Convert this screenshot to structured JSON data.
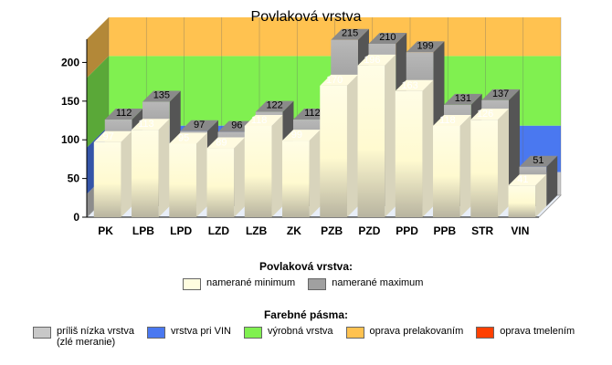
{
  "chart_data": {
    "type": "bar",
    "title": "Povlaková vrstva",
    "categories": [
      "PK",
      "LPB",
      "LPD",
      "LZD",
      "LZB",
      "ZK",
      "PZB",
      "PZD",
      "PPD",
      "PPB",
      "STR",
      "VIN"
    ],
    "series": [
      {
        "name": "namerané minimum",
        "values": [
          97,
          113,
          95,
          89,
          118,
          99,
          170,
          196,
          163,
          118,
          126,
          41
        ],
        "color": "#fffde0"
      },
      {
        "name": "namerané maximum",
        "values": [
          112,
          135,
          97,
          96,
          122,
          112,
          215,
          210,
          199,
          131,
          137,
          51
        ],
        "color": "#a0a0a0"
      }
    ],
    "ylim": [
      0,
      230
    ],
    "yticks": [
      0,
      50,
      100,
      150,
      200
    ],
    "bands": [
      {
        "name": "príliš nízka vrstva\n(zlé meranie)",
        "from": 0,
        "to": 30,
        "color": "#c8c8c8"
      },
      {
        "name": "vrstva pri VIN",
        "from": 30,
        "to": 90,
        "color": "#4a78f0"
      },
      {
        "name": "výrobná vrstva",
        "from": 90,
        "to": 180,
        "color": "#80f050"
      },
      {
        "name": "oprava prelakovaním",
        "from": 180,
        "to": 230,
        "color": "#ffc250"
      },
      {
        "name": "oprava tmelením",
        "from": 230,
        "to": 230,
        "color": "#ff4000"
      }
    ],
    "grid": false
  },
  "legend": {
    "series_title": "Povlaková vrstva:",
    "bands_title": "Farebné pásma:"
  }
}
